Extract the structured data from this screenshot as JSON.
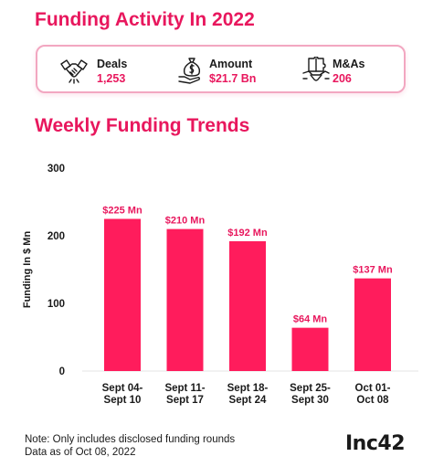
{
  "header": {
    "title": "Funding Activity In 2022"
  },
  "stats": [
    {
      "icon": "handshake-icon",
      "label": "Deals",
      "value": "1,253"
    },
    {
      "icon": "money-bag-hand-icon",
      "label": "Amount",
      "value": "$21.7 Bn"
    },
    {
      "icon": "puzzle-handshake-icon",
      "label": "M&As",
      "value": "206"
    }
  ],
  "section": {
    "title": "Weekly Funding Trends"
  },
  "chart_data": {
    "type": "bar",
    "title": "Weekly Funding Trends",
    "ylabel": "Funding In $ Mn",
    "xlabel": "",
    "ylim": [
      0,
      300
    ],
    "yticks": [
      0,
      100,
      200,
      300
    ],
    "categories": [
      [
        "Sept 04-",
        "Sept 10"
      ],
      [
        "Sept 11-",
        "Sept 17"
      ],
      [
        "Sept 18-",
        "Sept 24"
      ],
      [
        "Sept 25-",
        "Sept 30"
      ],
      [
        "Oct 01-",
        "Oct 08"
      ]
    ],
    "values": [
      225,
      210,
      192,
      64,
      137
    ],
    "data_labels": [
      "$225  Mn",
      "$210 Mn",
      "$192 Mn",
      "$64 Mn",
      "$137 Mn"
    ],
    "grid": false,
    "bar_color": "#ff1c5c"
  },
  "footer": {
    "note_line1": "Note: Only includes disclosed funding rounds",
    "note_line2": "Data as of Oct 08, 2022",
    "logo_text": "Inc42"
  },
  "colors": {
    "accent": "#e8175d",
    "border": "#f2a7c1"
  }
}
